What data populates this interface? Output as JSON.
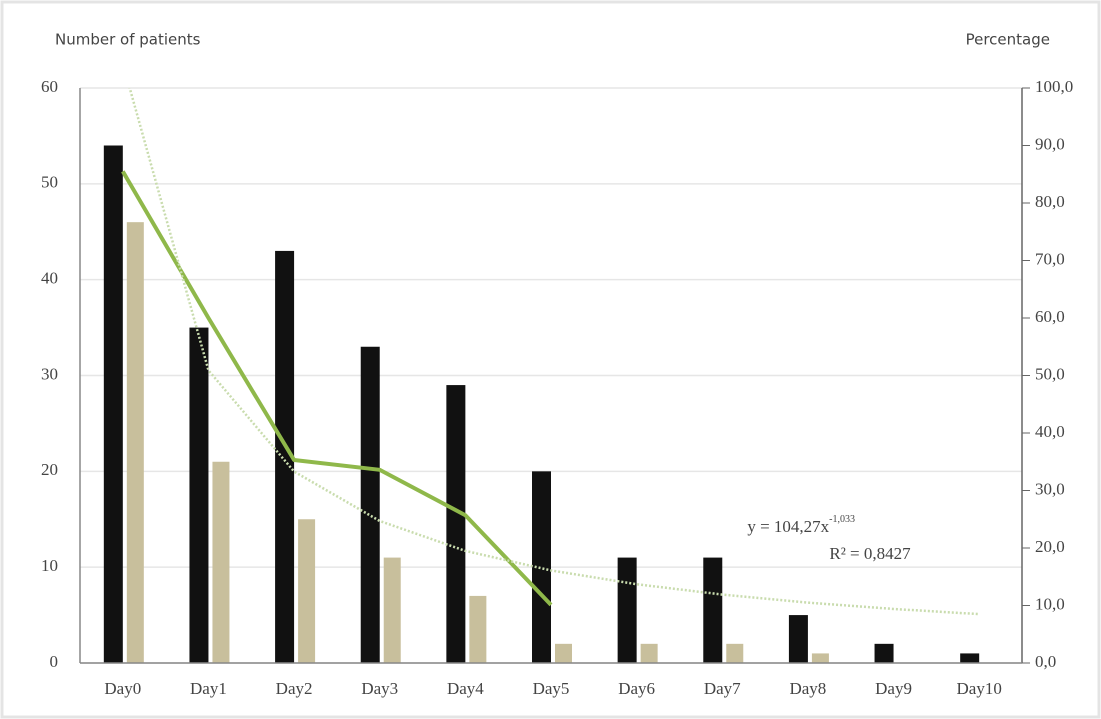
{
  "chart_data": {
    "type": "bar",
    "y_label": "Number of patients",
    "y2_label": "Percentage",
    "categories": [
      "Day0",
      "Day1",
      "Day2",
      "Day3",
      "Day4",
      "Day5",
      "Day6",
      "Day7",
      "Day8",
      "Day9",
      "Day10"
    ],
    "series": [
      {
        "color": "#111111",
        "values": [
          54,
          35,
          43,
          33,
          29,
          20,
          11,
          11,
          5,
          2,
          1
        ]
      },
      {
        "color": "#c8bf9c",
        "values": [
          46,
          21,
          15,
          11,
          7,
          2,
          2,
          2,
          1,
          0,
          0
        ]
      },
      {
        "type": "line",
        "axis": "y2",
        "color": "#8fb84a",
        "values": [
          85.5,
          60,
          35.3,
          33.6,
          25.7,
          10.1,
          null,
          null,
          null,
          null,
          null
        ]
      },
      {
        "type": "line",
        "axis": "y2",
        "color": "#c9dcae",
        "dotted": true,
        "values": [
          104.3,
          50.9,
          33.3,
          24.7,
          19.5,
          16.1,
          13.7,
          11.9,
          10.5,
          9.4,
          8.5
        ]
      }
    ],
    "annotations": {
      "equation": "y = 104,27x",
      "exponent": "-1,033",
      "r2": "R² = 0,8427"
    },
    "ylim": [
      0,
      60
    ],
    "yticks": [
      0,
      10,
      20,
      30,
      40,
      50,
      60
    ],
    "y2lim": [
      0,
      100
    ],
    "y2ticks": [
      {
        "value": 0,
        "label": "0,0"
      },
      {
        "value": 10,
        "label": "10,0"
      },
      {
        "value": 20,
        "label": "20,0"
      },
      {
        "value": 30,
        "label": "30,0"
      },
      {
        "value": 40,
        "label": "40,0"
      },
      {
        "value": 50,
        "label": "50,0"
      },
      {
        "value": 60,
        "label": "60,0"
      },
      {
        "value": 70,
        "label": "70,0"
      },
      {
        "value": 80,
        "label": "80,0"
      },
      {
        "value": 90,
        "label": "90,0"
      },
      {
        "value": 100,
        "label": "100,0"
      }
    ],
    "grid": true
  }
}
